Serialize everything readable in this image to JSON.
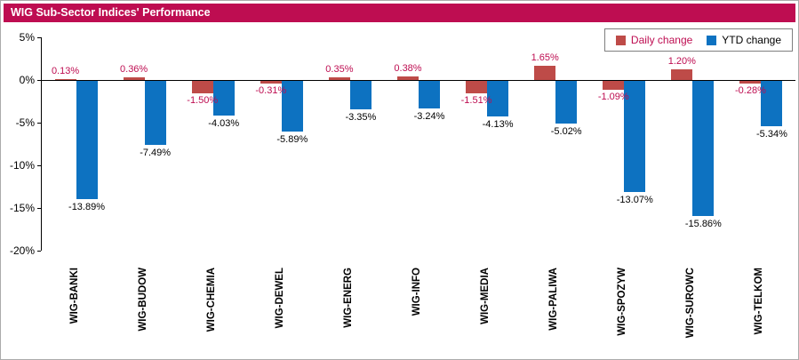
{
  "header": {
    "title": "WIG Sub-Sector Indices' Performance"
  },
  "colors": {
    "header_bg": "#BE0D51",
    "daily_bar": "#BE4B48",
    "ytd_bar": "#0D72C1",
    "daily_label_text": "#BE0D51",
    "ytd_label_text": "#000000",
    "axis": "#000000",
    "frame_border": "#ABABAB",
    "legend_border": "#7F7F7F"
  },
  "legend": {
    "items": [
      {
        "label": "Daily change",
        "swatch_color": "#BE4B48",
        "text_color": "#BE0D51"
      },
      {
        "label": "YTD change",
        "swatch_color": "#0D72C1",
        "text_color": "#000000"
      }
    ]
  },
  "chart_data": {
    "type": "bar",
    "title": "WIG Sub-Sector Indices' Performance",
    "categories": [
      "WIG-BANKI",
      "WIG-BUDOW",
      "WIG-CHEMIA",
      "WIG-DEWEL",
      "WIG-ENERG",
      "WIG-INFO",
      "WIG-MEDIA",
      "WIG-PALIWA",
      "WIG-SPOZYW",
      "WIG-SUROWC",
      "WIG-TELKOM"
    ],
    "series": [
      {
        "name": "Daily change",
        "values": [
          0.13,
          0.36,
          -1.5,
          -0.31,
          0.35,
          0.38,
          -1.51,
          1.65,
          -1.09,
          1.2,
          -0.28
        ],
        "labels": [
          "0.13%",
          "0.36%",
          "-1.50%",
          "-0.31%",
          "0.35%",
          "0.38%",
          "-1.51%",
          "1.65%",
          "-1.09%",
          "1.20%",
          "-0.28%"
        ]
      },
      {
        "name": "YTD change",
        "values": [
          -13.89,
          -7.49,
          -4.03,
          -5.89,
          -3.35,
          -3.24,
          -4.13,
          -5.02,
          -13.07,
          -15.86,
          -5.34
        ],
        "labels": [
          "-13.89%",
          "-7.49%",
          "-4.03%",
          "-5.89%",
          "-3.35%",
          "-3.24%",
          "-4.13%",
          "-5.02%",
          "-13.07%",
          "-15.86%",
          "-5.34%"
        ]
      }
    ],
    "ylim": [
      -20,
      5
    ],
    "ytick_step": 5,
    "yticks": [
      "5%",
      "0%",
      "-5%",
      "-10%",
      "-15%",
      "-20%"
    ],
    "legend_position": "top-right",
    "grid": false
  }
}
